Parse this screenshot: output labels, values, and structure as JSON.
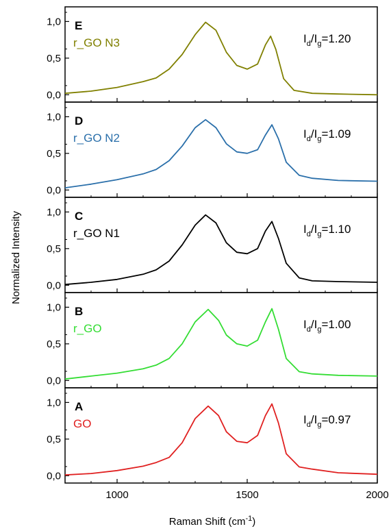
{
  "chart_data": {
    "type": "line",
    "xlabel": "Raman Shift (cm",
    "xlabel_sup": "-1",
    "xlabel_close": ")",
    "ylabel": "Normalized Intensity",
    "xlim": [
      800,
      2000
    ],
    "x_ticks": [
      1000,
      1500,
      2000
    ],
    "x_tick_labels": [
      "1000",
      "1500",
      "2000"
    ],
    "ylim": [
      -0.1,
      1.2
    ],
    "y_ticks": [
      0,
      0.5,
      1.0
    ],
    "y_tick_labels": [
      "0,0",
      "0,5",
      "1,0"
    ],
    "grid": false,
    "panels": [
      {
        "letter": "E",
        "name": "r_GO N3",
        "color": "#808000",
        "ratio_prefix": "I",
        "ratio_sub1": "d",
        "ratio_mid": "/I",
        "ratio_sub2": "g",
        "ratio_value": "=1.20",
        "x": [
          800,
          900,
          1000,
          1100,
          1150,
          1200,
          1250,
          1300,
          1340,
          1380,
          1420,
          1460,
          1500,
          1540,
          1570,
          1590,
          1610,
          1640,
          1680,
          1750,
          1850,
          2000
        ],
        "y": [
          0.02,
          0.05,
          0.1,
          0.18,
          0.23,
          0.35,
          0.55,
          0.82,
          0.99,
          0.88,
          0.58,
          0.4,
          0.35,
          0.42,
          0.68,
          0.8,
          0.62,
          0.22,
          0.06,
          0.02,
          0.01,
          0.0
        ]
      },
      {
        "letter": "D",
        "name": "r_GO N2",
        "color": "#2a6faa",
        "ratio_prefix": "I",
        "ratio_sub1": "d",
        "ratio_mid": "/I",
        "ratio_sub2": "g",
        "ratio_value": "=1.09",
        "x": [
          800,
          900,
          1000,
          1100,
          1150,
          1200,
          1250,
          1300,
          1340,
          1380,
          1420,
          1460,
          1500,
          1540,
          1570,
          1595,
          1620,
          1650,
          1700,
          1750,
          1850,
          2000
        ],
        "y": [
          0.03,
          0.08,
          0.14,
          0.22,
          0.28,
          0.4,
          0.6,
          0.85,
          0.96,
          0.85,
          0.63,
          0.52,
          0.5,
          0.55,
          0.75,
          0.89,
          0.7,
          0.38,
          0.2,
          0.16,
          0.13,
          0.12
        ]
      },
      {
        "letter": "C",
        "name": "r_GO N1",
        "color": "#000000",
        "ratio_prefix": "I",
        "ratio_sub1": "d",
        "ratio_mid": "/I",
        "ratio_sub2": "g",
        "ratio_value": "=1.10",
        "x": [
          800,
          900,
          1000,
          1100,
          1150,
          1200,
          1250,
          1300,
          1340,
          1380,
          1420,
          1460,
          1500,
          1540,
          1570,
          1595,
          1620,
          1650,
          1700,
          1750,
          1850,
          2000
        ],
        "y": [
          0.01,
          0.04,
          0.08,
          0.15,
          0.21,
          0.33,
          0.55,
          0.82,
          0.96,
          0.85,
          0.58,
          0.45,
          0.43,
          0.5,
          0.74,
          0.87,
          0.64,
          0.3,
          0.1,
          0.06,
          0.05,
          0.04
        ]
      },
      {
        "letter": "B",
        "name": "r_GO",
        "color": "#33dd33",
        "ratio_prefix": "I",
        "ratio_sub1": "d",
        "ratio_mid": "/I",
        "ratio_sub2": "g",
        "ratio_value": "=1.00",
        "x": [
          800,
          900,
          1000,
          1100,
          1150,
          1200,
          1250,
          1300,
          1350,
          1390,
          1420,
          1460,
          1500,
          1540,
          1570,
          1595,
          1620,
          1650,
          1700,
          1750,
          1850,
          2000
        ],
        "y": [
          0.02,
          0.06,
          0.1,
          0.16,
          0.21,
          0.3,
          0.5,
          0.8,
          0.97,
          0.82,
          0.62,
          0.5,
          0.47,
          0.55,
          0.8,
          0.98,
          0.7,
          0.3,
          0.12,
          0.09,
          0.07,
          0.06
        ]
      },
      {
        "letter": "A",
        "name": "GO",
        "color": "#e02020",
        "ratio_prefix": "I",
        "ratio_sub1": "d",
        "ratio_mid": "/I",
        "ratio_sub2": "g",
        "ratio_value": "=0.97",
        "x": [
          800,
          900,
          1000,
          1100,
          1150,
          1200,
          1250,
          1300,
          1350,
          1390,
          1420,
          1460,
          1500,
          1540,
          1570,
          1595,
          1620,
          1650,
          1700,
          1750,
          1850,
          2000
        ],
        "y": [
          0.01,
          0.03,
          0.07,
          0.13,
          0.18,
          0.25,
          0.45,
          0.78,
          0.95,
          0.82,
          0.6,
          0.47,
          0.45,
          0.55,
          0.82,
          0.98,
          0.72,
          0.3,
          0.12,
          0.09,
          0.04,
          0.02
        ]
      }
    ]
  }
}
